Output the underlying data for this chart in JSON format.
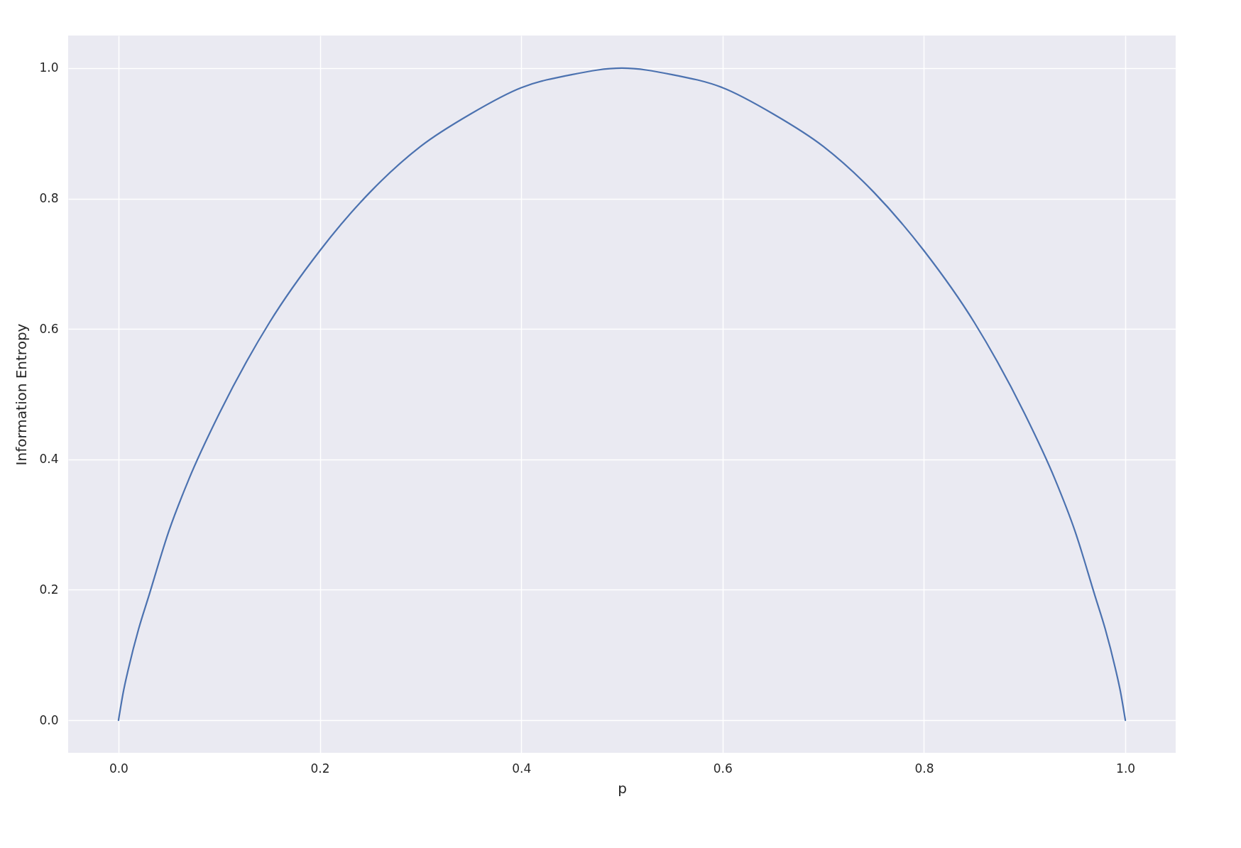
{
  "chart_data": {
    "type": "line",
    "xlabel": "p",
    "ylabel": "Information Entropy",
    "x": [
      0,
      0.005,
      0.01,
      0.02,
      0.03,
      0.05,
      0.07,
      0.1,
      0.15,
      0.2,
      0.25,
      0.3,
      0.35,
      0.4,
      0.45,
      0.5,
      0.55,
      0.6,
      0.65,
      0.7,
      0.75,
      0.8,
      0.85,
      0.9,
      0.93,
      0.95,
      0.97,
      0.98,
      0.99,
      0.995,
      1
    ],
    "series": [
      {
        "color": "#4c72b0",
        "values": [
          0,
          0.045,
          0.08,
          0.14,
          0.19,
          0.29,
          0.37,
          0.47,
          0.61,
          0.72,
          0.81,
          0.88,
          0.93,
          0.97,
          0.99,
          1.0,
          0.99,
          0.97,
          0.93,
          0.88,
          0.81,
          0.72,
          0.61,
          0.47,
          0.37,
          0.29,
          0.19,
          0.14,
          0.08,
          0.045,
          0
        ]
      }
    ],
    "xlim": [
      -0.05,
      1.05
    ],
    "ylim": [
      -0.05,
      1.05
    ],
    "xticks": [
      {
        "value": 0,
        "label": "0.0"
      },
      0.2,
      0.4,
      0.6,
      0.8,
      {
        "value": 1,
        "label": "1.0"
      }
    ],
    "yticks": [
      {
        "value": 0,
        "label": "0.0"
      },
      0.2,
      0.4,
      0.6,
      0.8,
      {
        "value": 1,
        "label": "1.0"
      }
    ],
    "grid": true,
    "marker": "none",
    "line_style": "solid"
  }
}
